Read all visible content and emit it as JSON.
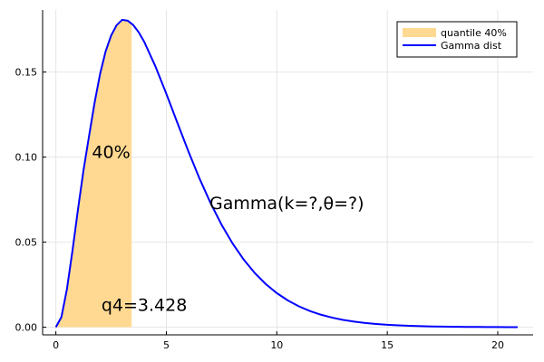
{
  "chart_data": {
    "type": "area",
    "title": "",
    "xlabel": "",
    "ylabel": "",
    "xlim": [
      -0.6,
      21.6
    ],
    "ylim": [
      -0.0045,
      0.1865
    ],
    "x_ticks": [
      0,
      5,
      10,
      15,
      20
    ],
    "y_ticks": [
      0.0,
      0.05,
      0.1,
      0.15
    ],
    "x_tick_labels": [
      "0",
      "5",
      "10",
      "15",
      "20"
    ],
    "y_tick_labels": [
      "0.00",
      "0.05",
      "0.10",
      "0.15"
    ],
    "grid": true,
    "legend_position": "top-right",
    "series": [
      {
        "name": "quantile 40%",
        "kind": "area",
        "color": "#ffd992",
        "x": [
          0,
          0.25,
          0.5,
          0.75,
          1.0,
          1.25,
          1.5,
          1.75,
          2.0,
          2.25,
          2.5,
          2.75,
          3.0,
          3.25,
          3.428
        ],
        "y": [
          0.0,
          0.00593,
          0.02235,
          0.04485,
          0.06916,
          0.09219,
          0.11222,
          0.13178,
          0.14883,
          0.16208,
          0.17145,
          0.17754,
          0.18069,
          0.18019,
          0.17863
        ]
      },
      {
        "name": "Gamma dist",
        "kind": "line",
        "color": "#0000ff",
        "x": [
          0,
          0.25,
          0.5,
          0.75,
          1.0,
          1.25,
          1.5,
          1.75,
          2.0,
          2.25,
          2.5,
          2.75,
          3.0,
          3.25,
          3.5,
          3.75,
          4.0,
          4.5,
          5.0,
          5.5,
          6.0,
          6.5,
          7.0,
          7.5,
          8.0,
          8.5,
          9.0,
          9.5,
          10.0,
          10.5,
          11.0,
          11.5,
          12.0,
          12.5,
          13.0,
          13.5,
          14.0,
          14.5,
          15.0,
          15.5,
          16.0,
          16.5,
          17.0,
          17.5,
          18.0,
          18.5,
          19.0,
          19.5,
          20.0,
          20.5,
          20.9
        ],
        "y": [
          0.0,
          0.00593,
          0.02235,
          0.04485,
          0.06916,
          0.09219,
          0.11222,
          0.13178,
          0.14883,
          0.16208,
          0.17145,
          0.17754,
          0.18069,
          0.18019,
          0.17767,
          0.17339,
          0.16777,
          0.15349,
          0.1372,
          0.12013,
          0.1033,
          0.08744,
          0.073,
          0.06023,
          0.04917,
          0.03977,
          0.03189,
          0.02536,
          0.02003,
          0.01571,
          0.01225,
          0.0095,
          0.00733,
          0.00563,
          0.0043,
          0.00327,
          0.00248,
          0.00188,
          0.00141,
          0.00106,
          0.0008,
          0.00059,
          0.00044,
          0.00033,
          0.00024,
          0.00018,
          0.00013,
          0.0001,
          7e-05,
          5e-05,
          4e-05
        ]
      }
    ],
    "annotations": [
      {
        "text": "40%",
        "x": 2.5,
        "y": 0.0995
      },
      {
        "text": "Gamma(k=?,θ=?)",
        "x": 10.45,
        "y": 0.0695
      },
      {
        "text": "q4=3.428",
        "x": 4.0,
        "y": 0.0095
      }
    ]
  }
}
